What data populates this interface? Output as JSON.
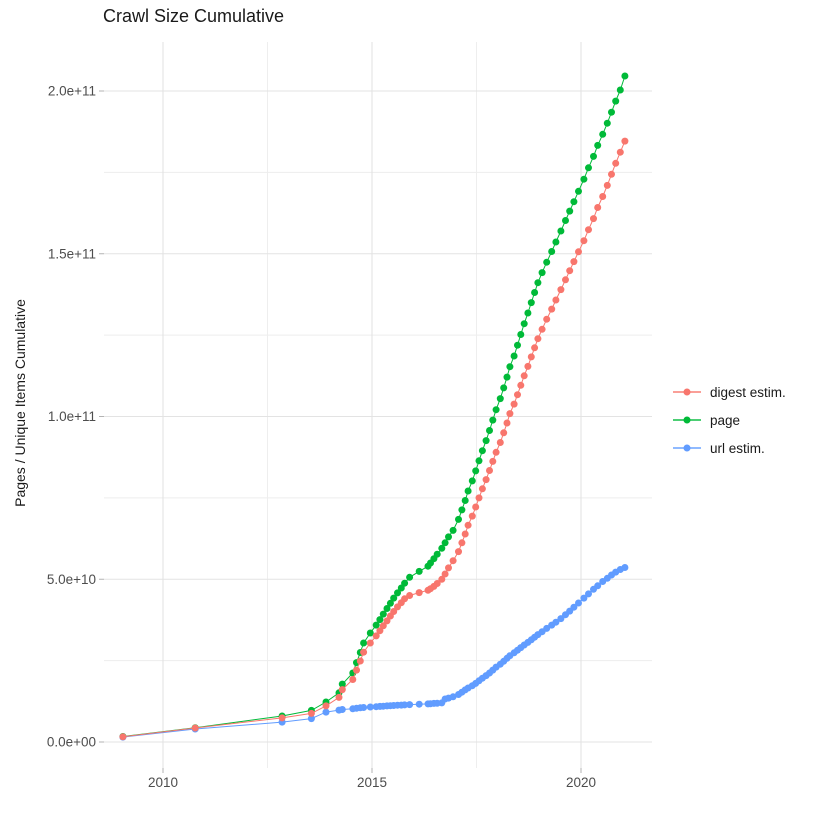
{
  "chart_data": {
    "type": "scatter",
    "title": "Crawl Size Cumulative",
    "xlabel": "",
    "ylabel": "Pages / Unique Items Cumulative",
    "grid": true,
    "legend_position": "right",
    "x_axis": {
      "major_ticks": [
        {
          "label": "2010",
          "value": 2010
        },
        {
          "label": "2015",
          "value": 2015
        },
        {
          "label": "2020",
          "value": 2020
        }
      ],
      "minor_ticks": [
        2012.5,
        2017.5
      ],
      "range_years": [
        2008.4,
        2021.65
      ]
    },
    "y_axis": {
      "major_ticks": [
        {
          "label": "0.0e+00",
          "value_e9": 0
        },
        {
          "label": "5.0e+10",
          "value_e9": 50
        },
        {
          "label": "1.0e+11",
          "value_e9": 100
        },
        {
          "label": "1.5e+11",
          "value_e9": 150
        },
        {
          "label": "2.0e+11",
          "value_e9": 200
        }
      ],
      "minor_ticks_e9": [
        25,
        75,
        125,
        175
      ],
      "range_e9": [
        -8,
        215
      ]
    },
    "x_years": [
      2009.04,
      2010.77,
      2012.85,
      2013.55,
      2013.9,
      2014.21,
      2014.29,
      2014.54,
      2014.63,
      2014.72,
      2014.8,
      2014.96,
      2015.1,
      2015.19,
      2015.27,
      2015.36,
      2015.44,
      2015.52,
      2015.61,
      2015.7,
      2015.78,
      2015.9,
      2016.13,
      2016.34,
      2016.4,
      2016.48,
      2016.56,
      2016.67,
      2016.75,
      2016.83,
      2016.94,
      2017.07,
      2017.15,
      2017.23,
      2017.3,
      2017.4,
      2017.48,
      2017.56,
      2017.64,
      2017.73,
      2017.81,
      2017.89,
      2017.97,
      2018.07,
      2018.15,
      2018.23,
      2018.3,
      2018.4,
      2018.48,
      2018.56,
      2018.64,
      2018.73,
      2018.81,
      2018.89,
      2018.97,
      2019.07,
      2019.18,
      2019.3,
      2019.4,
      2019.52,
      2019.63,
      2019.73,
      2019.83,
      2019.94,
      2020.07,
      2020.18,
      2020.3,
      2020.4,
      2020.52,
      2020.63,
      2020.73,
      2020.83,
      2020.94,
      2021.05
    ],
    "series": [
      {
        "name": "digest estim.",
        "color": "#F8766D",
        "values_e9": [
          1.6,
          4.3,
          7.4,
          8.8,
          11.1,
          13.7,
          16.1,
          19.2,
          22.1,
          24.9,
          27.6,
          30.4,
          32.6,
          34.2,
          35.7,
          37.2,
          38.7,
          40.1,
          41.5,
          42.8,
          44.0,
          45.0,
          45.9,
          46.6,
          47.1,
          47.8,
          48.7,
          50.0,
          51.6,
          53.5,
          55.7,
          58.5,
          61.2,
          63.9,
          66.6,
          69.4,
          72.2,
          75.0,
          77.8,
          80.6,
          83.4,
          86.2,
          89.0,
          92.0,
          95.0,
          98.0,
          100.9,
          103.8,
          106.7,
          109.6,
          112.5,
          115.4,
          118.3,
          121.1,
          123.9,
          126.8,
          129.9,
          133.0,
          135.8,
          139.0,
          142.0,
          144.8,
          147.6,
          150.6,
          154.0,
          157.4,
          160.8,
          164.2,
          167.6,
          171.0,
          174.4,
          177.8,
          181.2,
          184.6
        ]
      },
      {
        "name": "page",
        "color": "#00BA38",
        "values_e9": [
          1.7,
          4.4,
          8.0,
          9.7,
          12.3,
          15.1,
          17.8,
          21.2,
          24.4,
          27.5,
          30.4,
          33.5,
          35.9,
          37.6,
          39.3,
          41.0,
          42.6,
          44.2,
          45.8,
          47.3,
          48.8,
          50.6,
          52.4,
          54.0,
          55.0,
          56.3,
          57.7,
          59.5,
          61.2,
          63.0,
          65.0,
          68.4,
          71.3,
          74.2,
          77.1,
          80.2,
          83.3,
          86.4,
          89.5,
          92.6,
          95.7,
          98.9,
          102.1,
          105.5,
          108.8,
          112.1,
          115.3,
          118.6,
          121.9,
          125.2,
          128.5,
          131.8,
          135.0,
          138.1,
          141.1,
          144.2,
          147.4,
          150.7,
          153.6,
          157.0,
          160.2,
          163.1,
          166.0,
          169.2,
          172.9,
          176.4,
          179.9,
          183.3,
          186.7,
          190.1,
          193.5,
          196.9,
          200.3,
          204.6
        ]
      },
      {
        "name": "url estim.",
        "color": "#619CFF",
        "values_e9": [
          1.5,
          4.0,
          6.1,
          7.2,
          9.2,
          9.8,
          10.0,
          10.2,
          10.35,
          10.5,
          10.6,
          10.75,
          10.85,
          10.95,
          11.0,
          11.1,
          11.15,
          11.2,
          11.3,
          11.35,
          11.4,
          11.5,
          11.6,
          11.7,
          11.75,
          11.85,
          11.9,
          12.0,
          13.2,
          13.5,
          13.9,
          14.6,
          15.3,
          16.0,
          16.6,
          17.3,
          18.0,
          18.8,
          19.6,
          20.4,
          21.2,
          22.1,
          23.0,
          23.9,
          24.8,
          25.7,
          26.5,
          27.4,
          28.2,
          29.0,
          29.8,
          30.6,
          31.4,
          32.2,
          33.0,
          33.9,
          34.9,
          35.9,
          36.8,
          37.9,
          39.1,
          40.2,
          41.4,
          42.7,
          44.2,
          45.5,
          46.9,
          48.0,
          49.3,
          50.3,
          51.3,
          52.2,
          53.0,
          53.6
        ]
      }
    ],
    "draw_order": [
      1,
      2,
      0
    ]
  },
  "style_colors": {
    "grid_major": "#e3e3e3",
    "grid_minor": "#ededed",
    "tick_mark": "#b3b3b3",
    "tick_label": "#4d4d4d",
    "text": "#1a1a1a",
    "background": "#ffffff"
  }
}
